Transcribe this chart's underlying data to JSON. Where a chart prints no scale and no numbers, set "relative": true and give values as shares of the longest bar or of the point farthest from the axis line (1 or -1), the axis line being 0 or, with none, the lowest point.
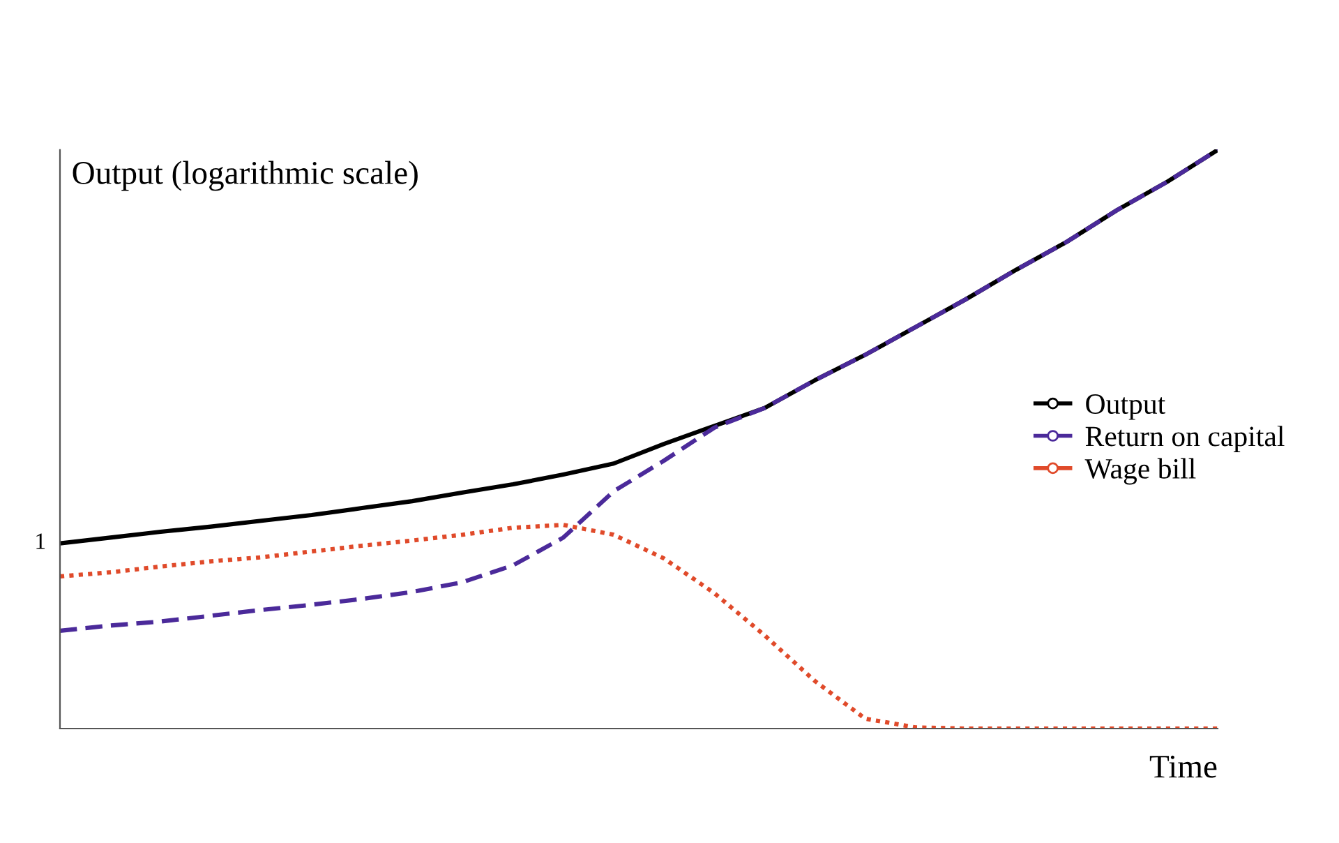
{
  "chart_data": {
    "type": "line",
    "relative": true,
    "ylabel": "Output (logarithmic scale)",
    "xlabel": "Time",
    "categories": [
      null,
      null,
      null,
      null,
      null,
      null,
      null,
      null,
      null,
      null,
      null,
      null,
      null,
      null,
      null,
      null,
      null,
      null,
      null,
      null,
      null,
      null,
      null,
      null
    ],
    "series": [
      {
        "name": "Output",
        "color": "#000000",
        "line_style": "solid",
        "values": [
          0.32,
          0.33,
          0.34,
          0.349,
          0.359,
          0.369,
          0.381,
          0.393,
          0.408,
          0.422,
          0.439,
          0.458,
          0.492,
          0.523,
          0.554,
          0.602,
          0.646,
          0.694,
          0.742,
          0.793,
          0.841,
          0.896,
          0.945,
          1.0
        ]
      },
      {
        "name": "Return on capital",
        "color": "#4b2a9a",
        "line_style": "dashed",
        "values": [
          0.169,
          0.178,
          0.185,
          0.195,
          0.205,
          0.214,
          0.224,
          0.236,
          0.253,
          0.282,
          0.33,
          0.41,
          0.463,
          0.52,
          0.554,
          0.602,
          0.646,
          0.694,
          0.742,
          0.793,
          0.841,
          0.896,
          0.945,
          1.0
        ]
      },
      {
        "name": "Wage bill",
        "color": "#e04a2a",
        "line_style": "dotted",
        "values": [
          0.263,
          0.27,
          0.28,
          0.289,
          0.296,
          0.306,
          0.316,
          0.325,
          0.335,
          0.347,
          0.352,
          0.335,
          0.294,
          0.234,
          0.161,
          0.082,
          0.017,
          0.002,
          0,
          0,
          0,
          0,
          0,
          0
        ]
      }
    ],
    "annotations": [
      "1"
    ],
    "legend": "right",
    "grid": false
  }
}
